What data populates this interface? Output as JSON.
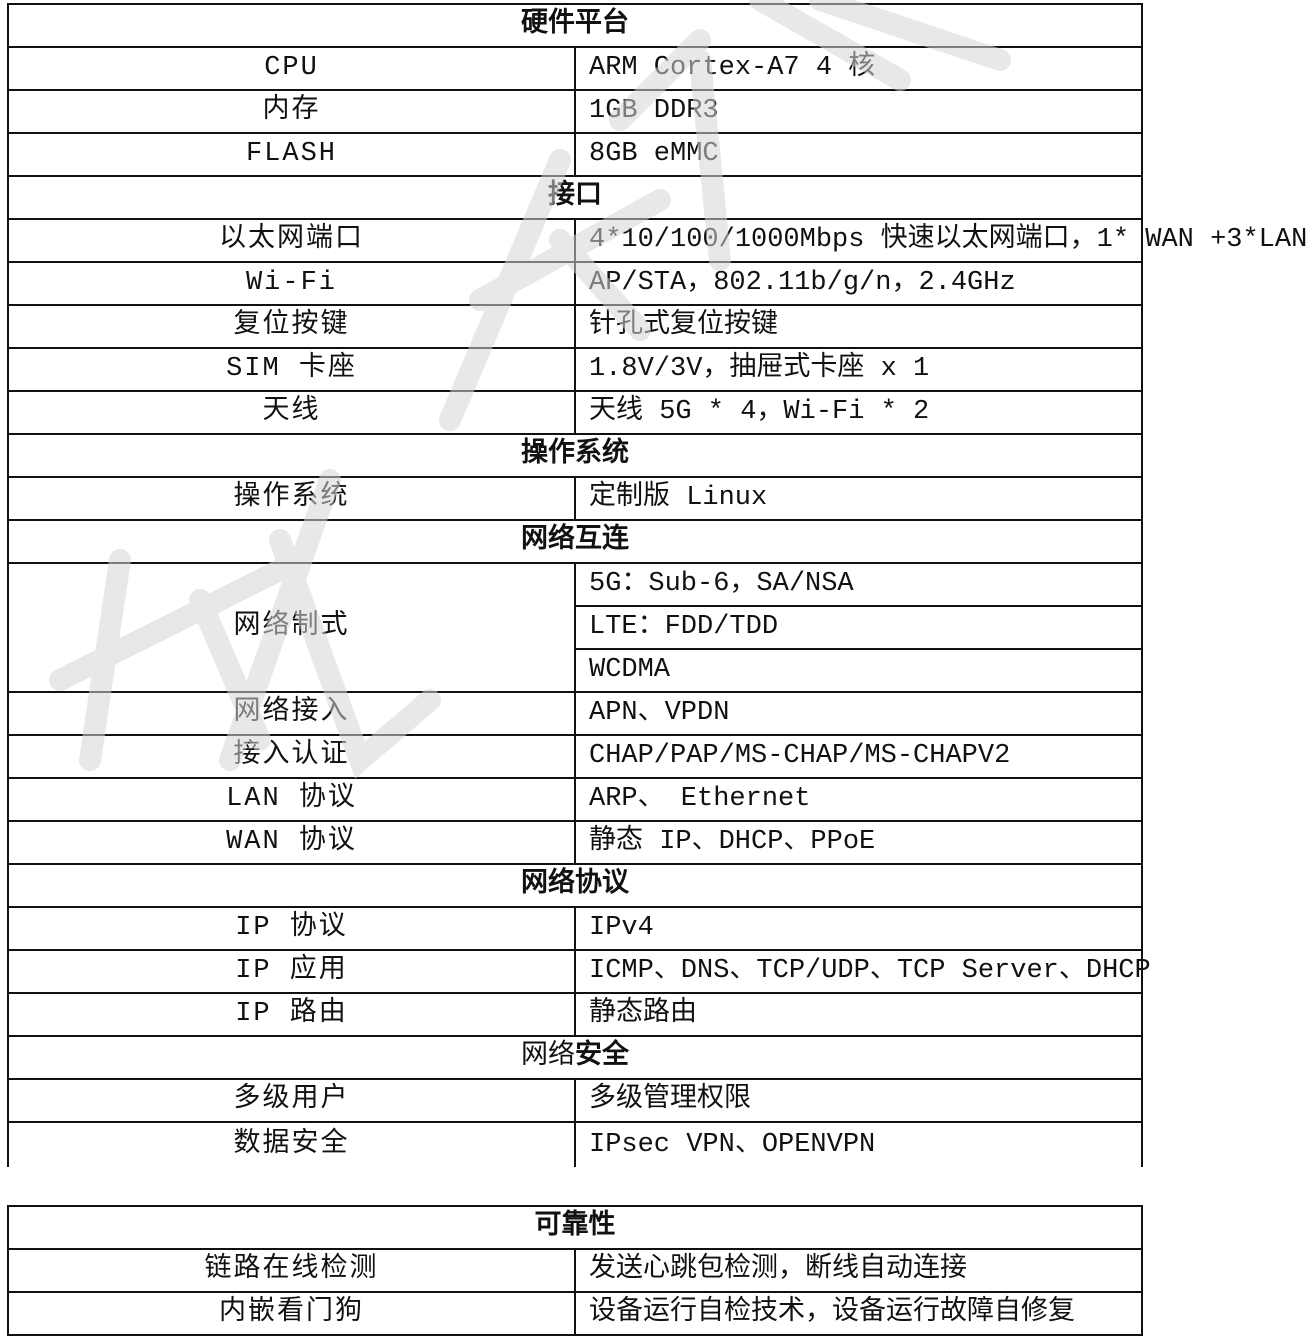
{
  "watermark": "稿件",
  "watermark_color": "#d6d6d6",
  "sections_top": [
    {
      "title": "硬件平台",
      "rows": [
        {
          "key": "CPU",
          "values": [
            "ARM Cortex-A7 4 核"
          ]
        },
        {
          "key": "内存",
          "values": [
            "1GB DDR3"
          ]
        },
        {
          "key": "FLASH",
          "values": [
            "8GB eMMC"
          ]
        }
      ]
    },
    {
      "title": "接口",
      "rows": [
        {
          "key": "以太网端口",
          "values": [
            "4*10/100/1000Mbps 快速以太网端口，1* WAN +3*LAN"
          ]
        },
        {
          "key": "Wi-Fi",
          "values": [
            "AP/STA，802.11b/g/n，2.4GHz"
          ]
        },
        {
          "key": "复位按键",
          "values": [
            "针孔式复位按键"
          ]
        },
        {
          "key": "SIM 卡座",
          "values": [
            "1.8V/3V，抽屉式卡座 x 1"
          ]
        },
        {
          "key": "天线",
          "values": [
            "天线 5G * 4，Wi-Fi * 2"
          ]
        }
      ]
    },
    {
      "title": "操作系统",
      "rows": [
        {
          "key": "操作系统",
          "values": [
            "定制版 Linux"
          ]
        }
      ]
    },
    {
      "title": "网络互连",
      "rows": [
        {
          "key": "网络制式",
          "values": [
            "5G：Sub-6，SA/NSA",
            "LTE：FDD/TDD",
            "WCDMA"
          ]
        },
        {
          "key": "网络接入",
          "values": [
            "APN、VPDN"
          ]
        },
        {
          "key": "接入认证",
          "values": [
            "CHAP/PAP/MS-CHAP/MS-CHAPV2"
          ]
        },
        {
          "key": "LAN 协议",
          "values": [
            "ARP、 Ethernet"
          ]
        },
        {
          "key": "WAN 协议",
          "values": [
            "静态 IP、DHCP、PPoE"
          ]
        }
      ]
    },
    {
      "title": "网络协议",
      "rows": [
        {
          "key": "IP 协议",
          "values": [
            "IPv4"
          ]
        },
        {
          "key": "IP 应用",
          "values": [
            "ICMP、DNS、TCP/UDP、TCP Server、DHCP"
          ]
        },
        {
          "key": "IP 路由",
          "values": [
            "静态路由"
          ]
        }
      ]
    },
    {
      "title": "网络安全",
      "title_plain_part": "网络",
      "title_bold_part": "安全",
      "rows": [
        {
          "key": "多级用户",
          "values": [
            "多级管理权限"
          ]
        },
        {
          "key": "数据安全",
          "values": [
            "IPsec VPN、OPENVPN"
          ]
        }
      ]
    }
  ],
  "sections_bottom": [
    {
      "title": "可靠性",
      "rows": [
        {
          "key": "链路在线检测",
          "values": [
            "发送心跳包检测，断线自动连接"
          ]
        },
        {
          "key": "内嵌看门狗",
          "values": [
            "设备运行自检技术，设备运行故障自修复"
          ]
        }
      ]
    }
  ]
}
